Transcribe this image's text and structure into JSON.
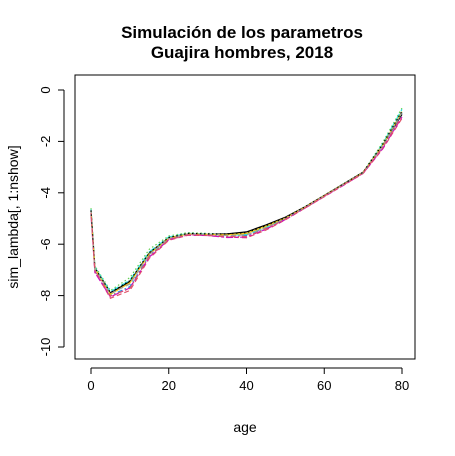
{
  "chart_data": {
    "type": "line",
    "title": [
      "Simulación de los parametros",
      "Guajira hombres, 2018"
    ],
    "xlabel": "age",
    "ylabel": "sim_lambda[, 1:nshow]",
    "xlim": [
      0,
      80
    ],
    "ylim": [
      -10,
      0
    ],
    "xticks": [
      0,
      20,
      40,
      60,
      80
    ],
    "yticks": [
      -10,
      -8,
      -6,
      -4,
      -2,
      0
    ],
    "grid": false,
    "legend": "none",
    "x": [
      0,
      1,
      5,
      10,
      15,
      20,
      25,
      30,
      35,
      40,
      45,
      50,
      55,
      60,
      65,
      70,
      75,
      80
    ],
    "series": [
      {
        "color": "#000000",
        "dash": "solid",
        "values": [
          -4.7,
          -6.95,
          -7.9,
          -7.45,
          -6.35,
          -5.75,
          -5.6,
          -5.62,
          -5.6,
          -5.52,
          -5.25,
          -4.95,
          -4.55,
          -4.1,
          -3.65,
          -3.2,
          -2.15,
          -0.95
        ]
      },
      {
        "color": "#df536b",
        "dash": "dash",
        "values": [
          -4.8,
          -7.05,
          -8.1,
          -7.8,
          -6.55,
          -5.85,
          -5.65,
          -5.66,
          -5.72,
          -5.75,
          -5.45,
          -5.05,
          -4.6,
          -4.15,
          -3.7,
          -3.25,
          -2.3,
          -1.1
        ]
      },
      {
        "color": "#61d04f",
        "dash": "dot",
        "values": [
          -4.6,
          -6.85,
          -7.8,
          -7.3,
          -6.2,
          -5.68,
          -5.55,
          -5.58,
          -5.62,
          -5.6,
          -5.32,
          -4.98,
          -4.55,
          -4.1,
          -3.65,
          -3.2,
          -2.05,
          -0.7
        ]
      },
      {
        "color": "#2297e6",
        "dash": "dashdot",
        "values": [
          -4.75,
          -7.0,
          -8.0,
          -7.65,
          -6.45,
          -5.8,
          -5.62,
          -5.64,
          -5.68,
          -5.66,
          -5.38,
          -5.02,
          -4.58,
          -4.12,
          -3.68,
          -3.22,
          -2.2,
          -0.9
        ]
      },
      {
        "color": "#28e2e5",
        "dash": "longdash",
        "values": [
          -4.65,
          -6.9,
          -7.85,
          -7.4,
          -6.3,
          -5.72,
          -5.58,
          -5.6,
          -5.66,
          -5.62,
          -5.35,
          -5.0,
          -4.56,
          -4.11,
          -3.66,
          -3.21,
          -2.1,
          -0.75
        ]
      },
      {
        "color": "#cd0bbc",
        "dash": "twodash",
        "values": [
          -4.85,
          -7.1,
          -8.05,
          -7.7,
          -6.5,
          -5.82,
          -5.64,
          -5.66,
          -5.74,
          -5.72,
          -5.42,
          -5.04,
          -4.6,
          -4.14,
          -3.7,
          -3.24,
          -2.28,
          -1.05
        ]
      },
      {
        "color": "#f5c710",
        "dash": "solid",
        "values": [
          -4.7,
          -6.95,
          -7.95,
          -7.5,
          -6.38,
          -5.76,
          -5.6,
          -5.62,
          -5.64,
          -5.58,
          -5.3,
          -4.98,
          -4.56,
          -4.11,
          -3.66,
          -3.21,
          -2.15,
          -0.85
        ]
      },
      {
        "color": "#9e9e9e",
        "dash": "dash",
        "values": [
          -4.72,
          -6.98,
          -7.92,
          -7.55,
          -6.4,
          -5.78,
          -5.6,
          -5.62,
          -5.66,
          -5.64,
          -5.36,
          -5.0,
          -4.57,
          -4.12,
          -3.67,
          -3.22,
          -2.18,
          -0.88
        ]
      },
      {
        "color": "#000000",
        "dash": "dot",
        "values": [
          -4.68,
          -6.92,
          -7.88,
          -7.42,
          -6.33,
          -5.74,
          -5.58,
          -5.6,
          -5.6,
          -5.55,
          -5.28,
          -4.97,
          -4.55,
          -4.1,
          -3.65,
          -3.2,
          -2.12,
          -0.82
        ]
      },
      {
        "color": "#df536b",
        "dash": "dashdot",
        "values": [
          -4.78,
          -7.02,
          -8.02,
          -7.72,
          -6.48,
          -5.83,
          -5.63,
          -5.65,
          -5.7,
          -5.7,
          -5.4,
          -5.03,
          -4.59,
          -4.13,
          -3.69,
          -3.23,
          -2.25,
          -1.0
        ]
      }
    ]
  }
}
